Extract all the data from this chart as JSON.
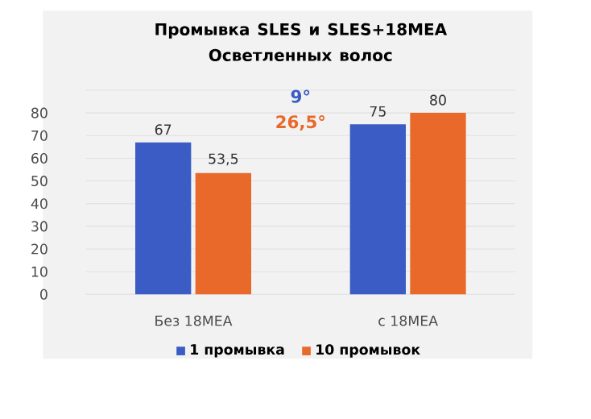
{
  "chart_data": {
    "type": "bar",
    "title": "Промывка SLES и SLES+18MEA Осветленных волос",
    "categories": [
      "Без 18MEA",
      "с 18MEA"
    ],
    "series": [
      {
        "name": "1 промывка",
        "color": "#3a5cc4",
        "values": [
          67,
          75
        ],
        "value_labels": [
          "67",
          "75"
        ]
      },
      {
        "name": "10 промывок",
        "color": "#e8692a",
        "values": [
          53.5,
          80
        ],
        "value_labels": [
          "53,5",
          "80"
        ]
      }
    ],
    "ylim": [
      0,
      90
    ],
    "yticks": [
      0,
      10,
      20,
      30,
      40,
      50,
      60,
      70,
      80,
      {
        "value": 90,
        "label": null
      }
    ],
    "grid": "y",
    "legend": "bottom",
    "annotations": [
      "9°",
      "26,5°"
    ]
  }
}
